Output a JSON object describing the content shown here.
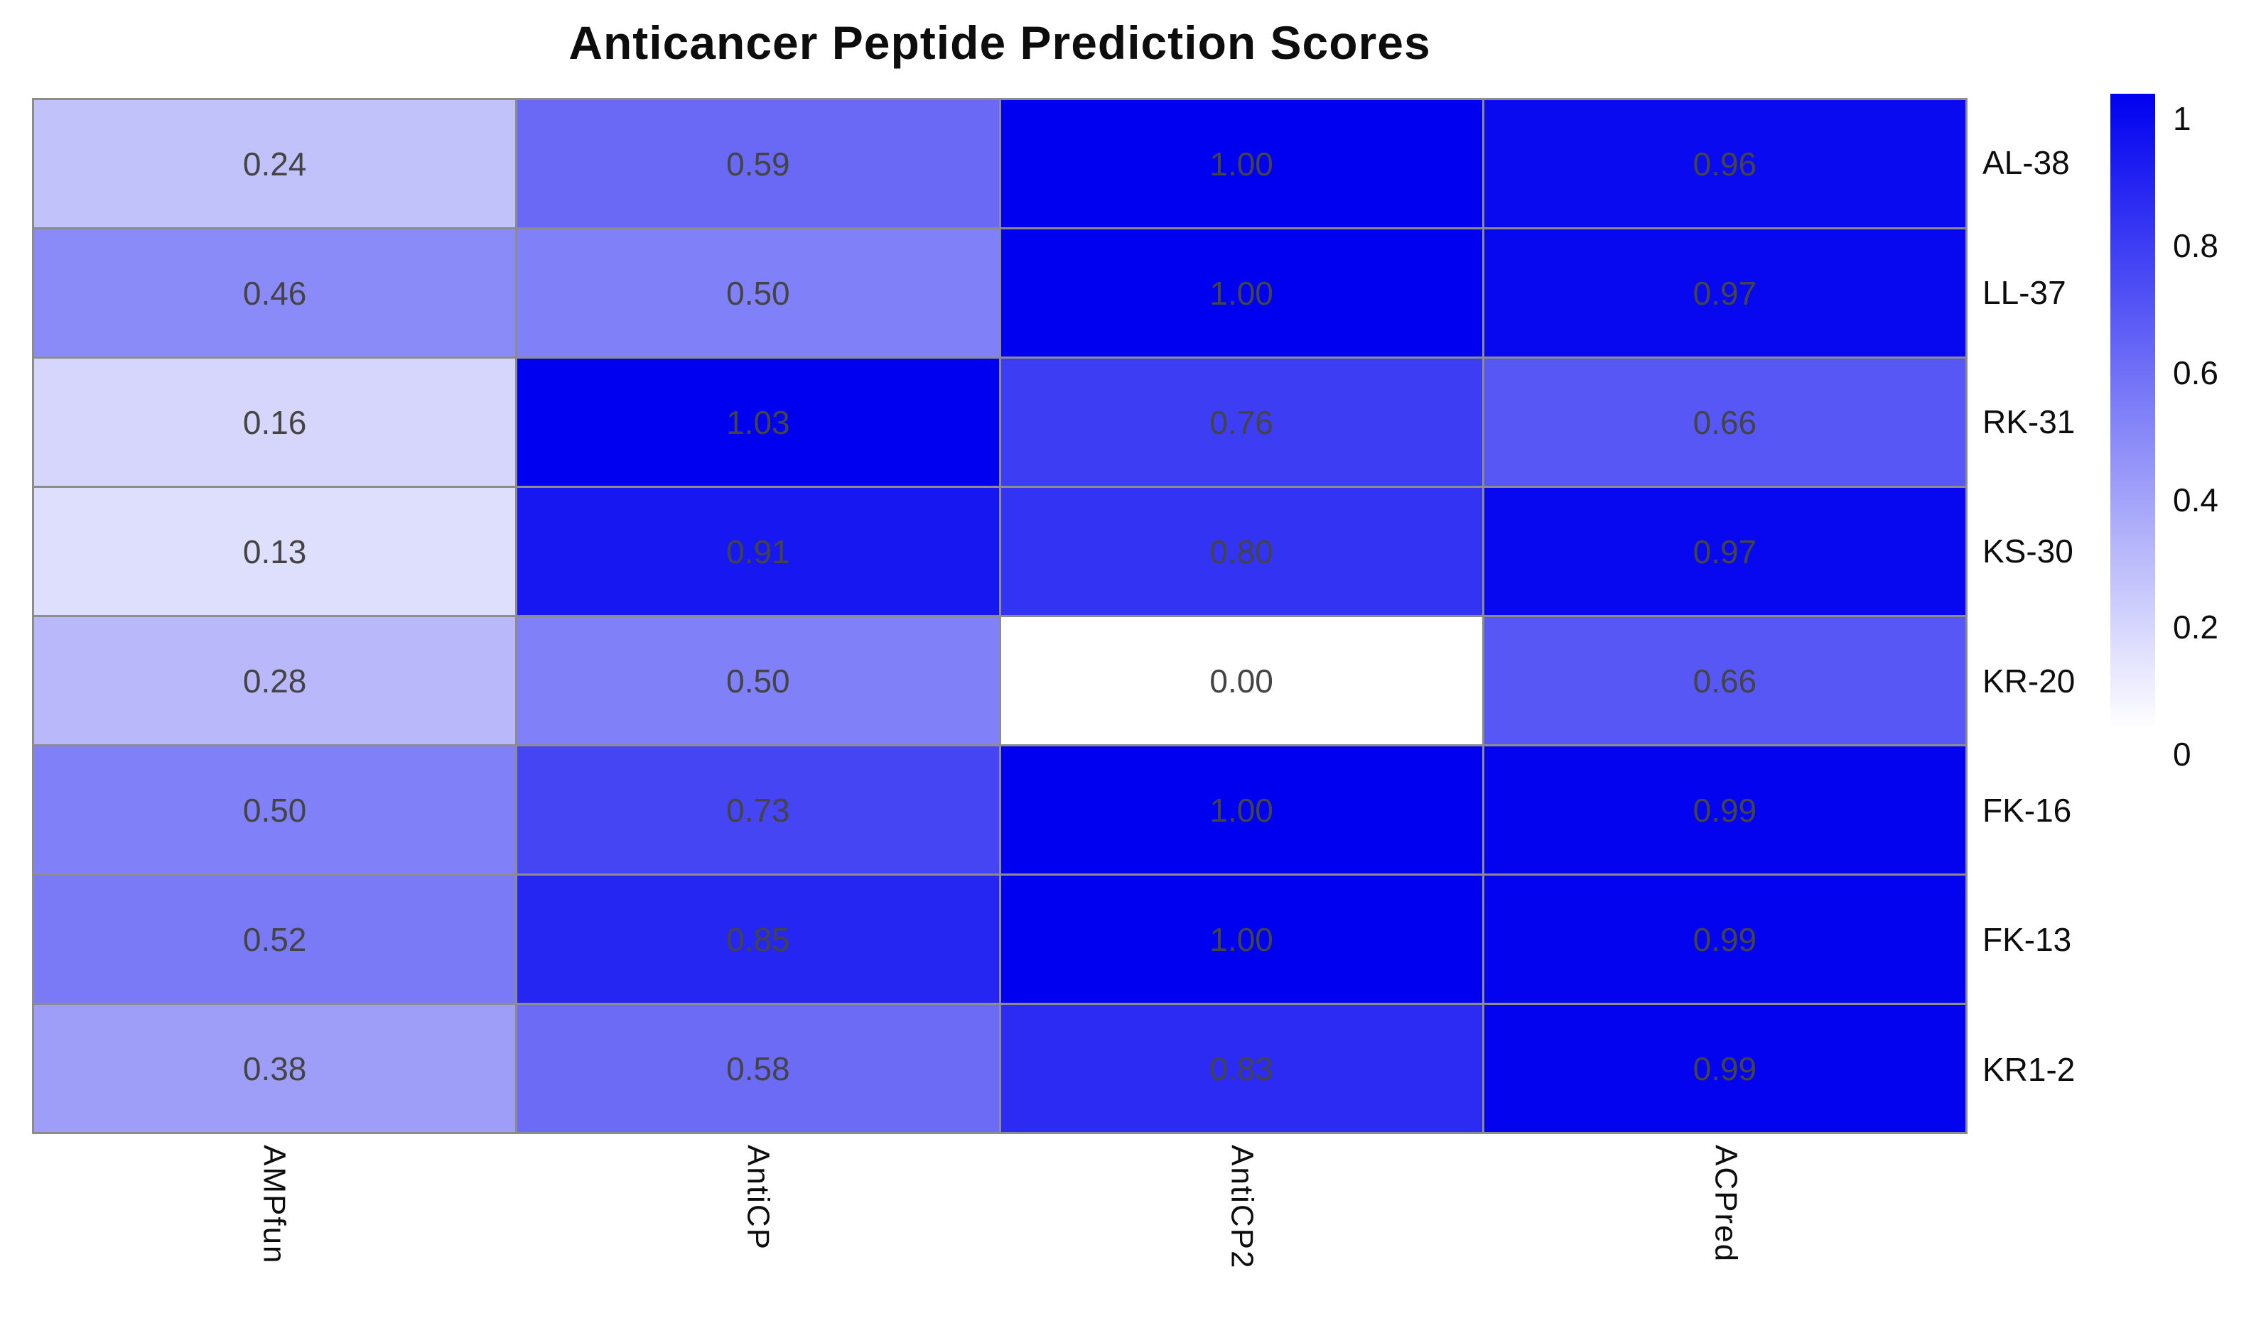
{
  "title": "Anticancer Peptide Prediction Scores",
  "chart_data": {
    "type": "heatmap",
    "title": "Anticancer Peptide Prediction Scores",
    "columns": [
      "AMPfun",
      "AntiCP",
      "AntiCP2",
      "ACPred"
    ],
    "rows": [
      "AL-38",
      "LL-37",
      "RK-31",
      "KS-30",
      "KR-20",
      "FK-16",
      "FK-13",
      "KR1-2"
    ],
    "values": [
      [
        0.24,
        0.59,
        1.0,
        0.96
      ],
      [
        0.46,
        0.5,
        1.0,
        0.97
      ],
      [
        0.16,
        1.03,
        0.76,
        0.66
      ],
      [
        0.13,
        0.91,
        0.8,
        0.97
      ],
      [
        0.28,
        0.5,
        0.0,
        0.66
      ],
      [
        0.5,
        0.73,
        1.0,
        0.99
      ],
      [
        0.52,
        0.85,
        1.0,
        0.99
      ],
      [
        0.38,
        0.58,
        0.83,
        0.99
      ]
    ],
    "cell_labels": [
      [
        "0.24",
        "0.59",
        "1.00",
        "0.96"
      ],
      [
        "0.46",
        "0.50",
        "1.00",
        "0.97"
      ],
      [
        "0.16",
        "1.03",
        "0.76",
        "0.66"
      ],
      [
        "0.13",
        "0.91",
        "0.80",
        "0.97"
      ],
      [
        "0.28",
        "0.50",
        "0.00",
        "0.66"
      ],
      [
        "0.50",
        "0.73",
        "1.00",
        "0.99"
      ],
      [
        "0.52",
        "0.85",
        "1.00",
        "0.99"
      ],
      [
        "0.38",
        "0.58",
        "0.83",
        "0.99"
      ]
    ],
    "value_range": [
      0,
      1
    ],
    "colormap": {
      "low": "#FFFFFF",
      "high": "#0000F0"
    },
    "gridline_color": "#8C8C8C",
    "cell_text_color": "#444444",
    "colorbar": {
      "position": "right",
      "ticks": [
        "1",
        "0.8",
        "0.6",
        "0.4",
        "0.2",
        "0"
      ]
    },
    "legend_position": "right",
    "grid": true
  }
}
